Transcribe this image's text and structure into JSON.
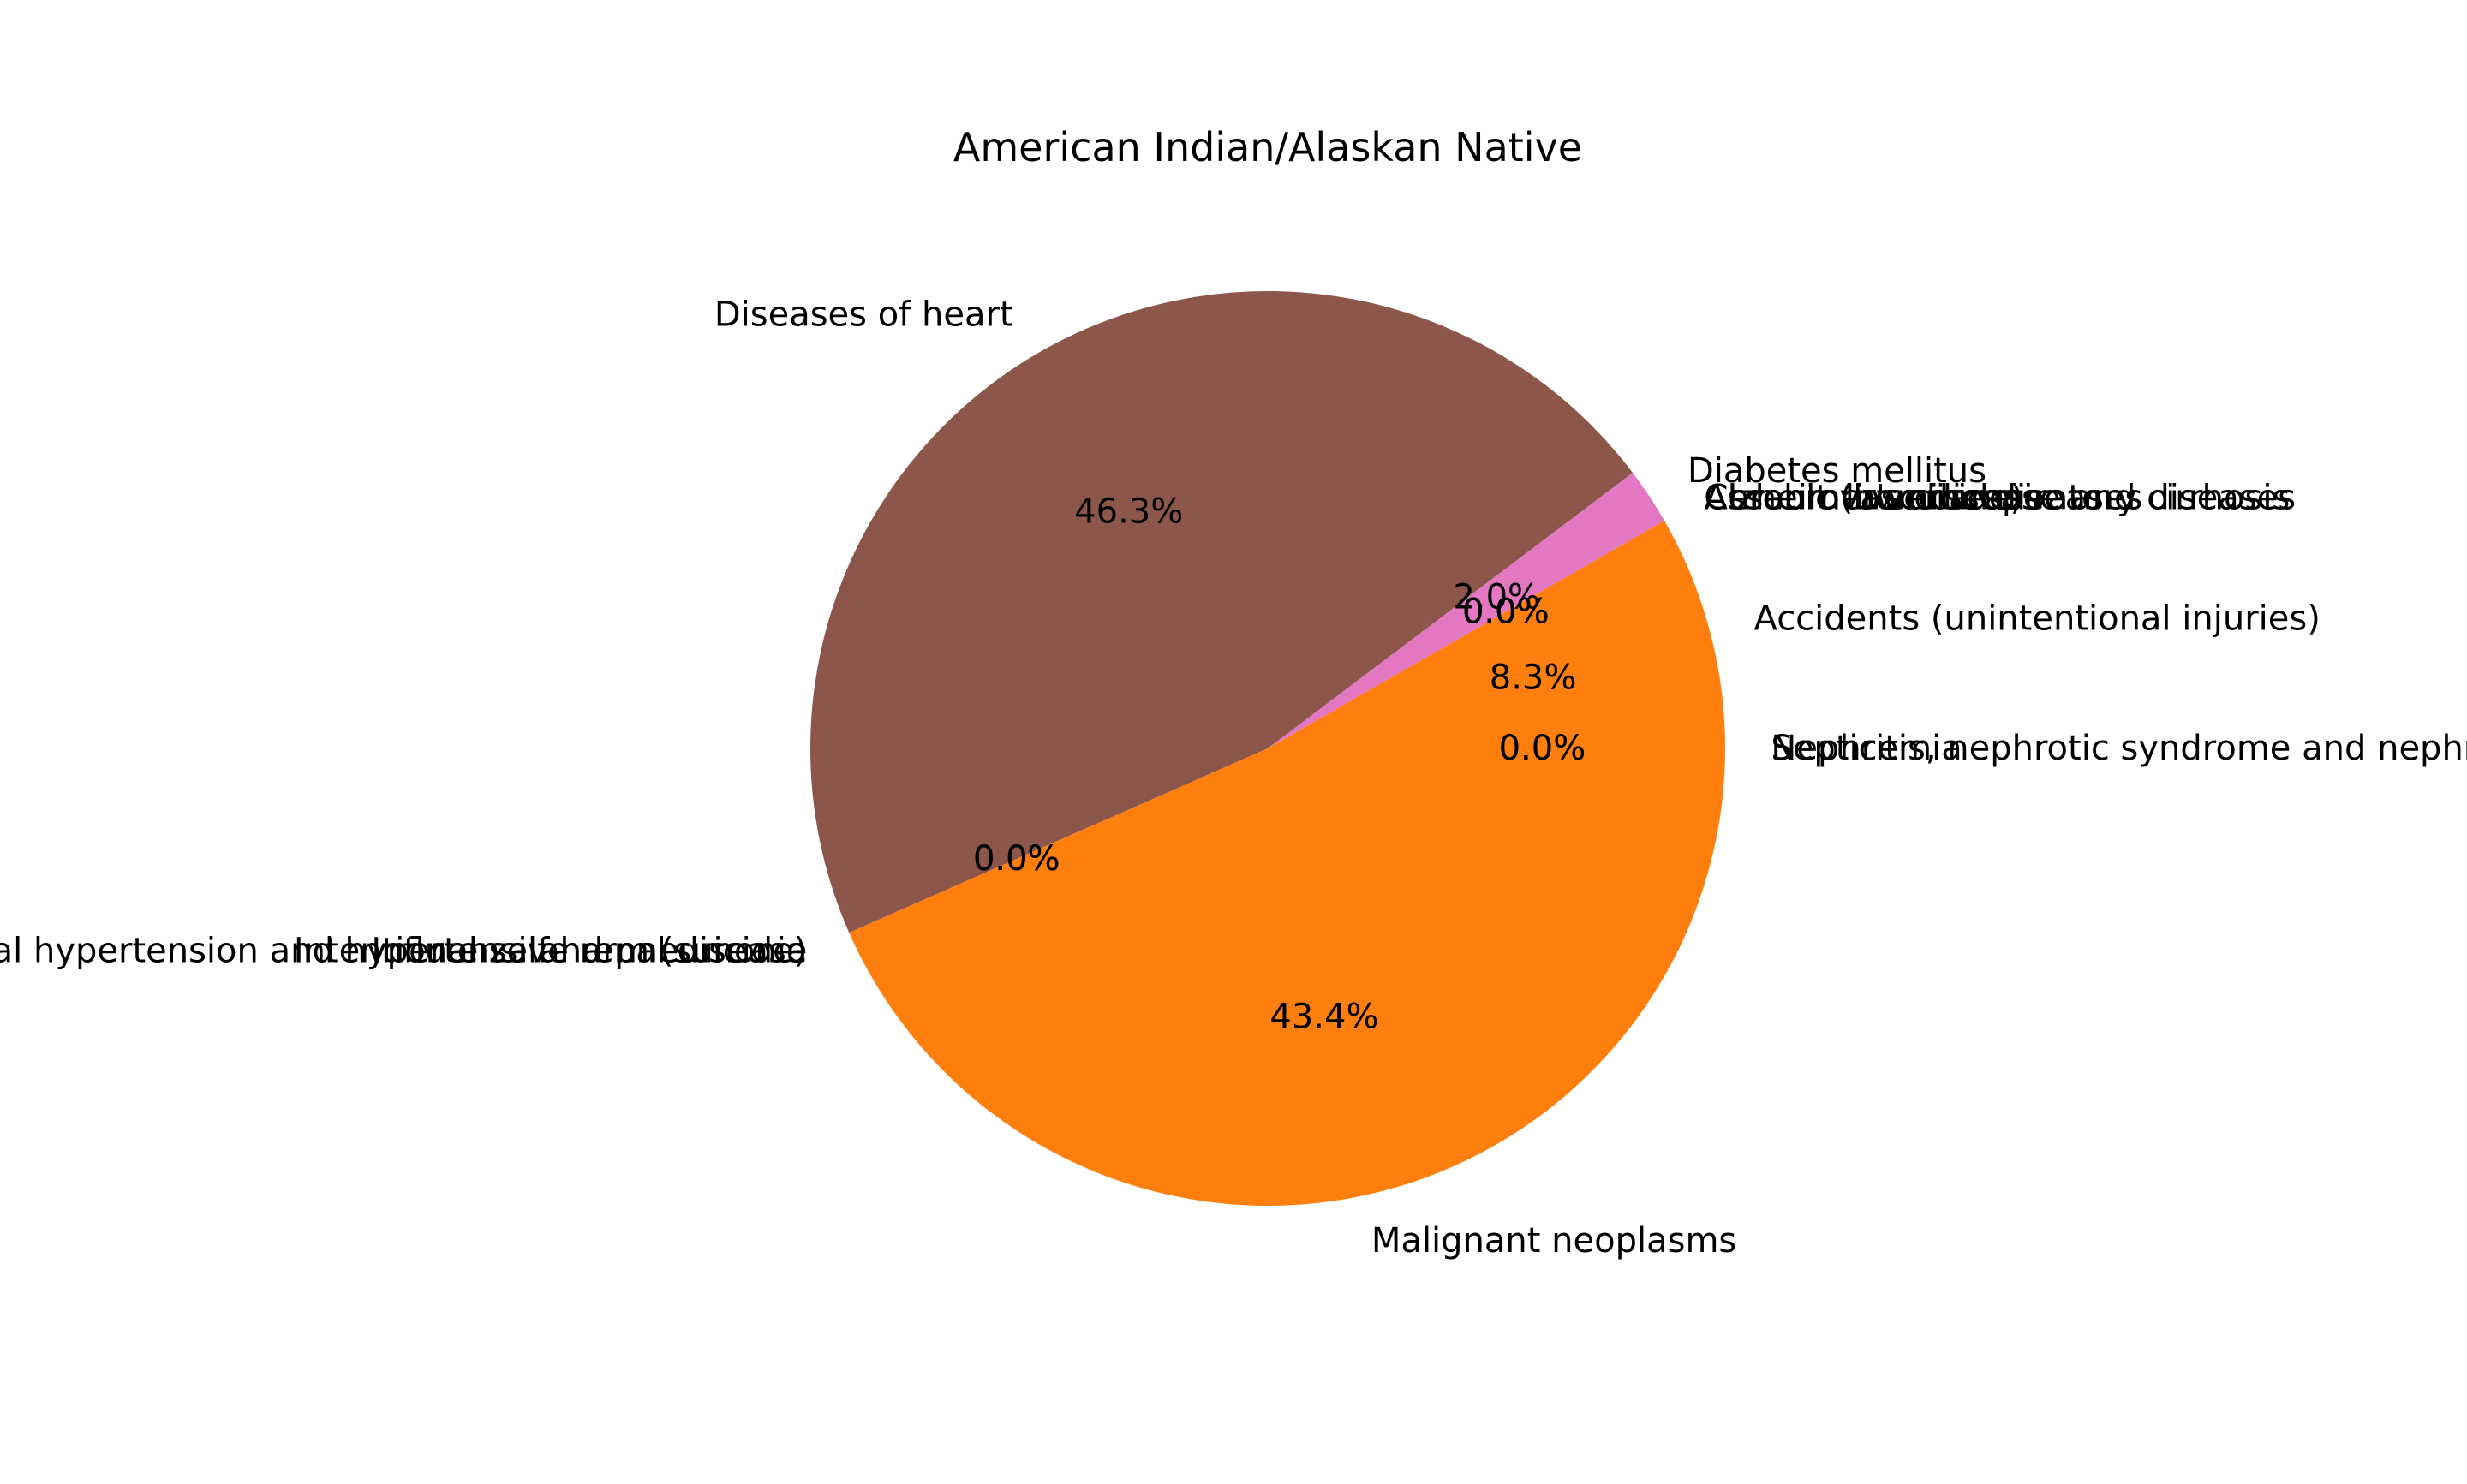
{
  "chart_data": {
    "type": "pie",
    "title": "American Indian/Alaskan Native",
    "labels": [
      "Accidents (unintentional injuries)",
      "Alzheimer's disease",
      "Assault (homicide)",
      "Cerebrovascular diseases",
      "Chronic liver disease and cirrhosis",
      "Chronic lower respiratory diseases",
      "Diabetes mellitus",
      "Diseases of heart",
      "Essential hypertension and hypertensive renal disease",
      "Influenza and pneumonia",
      "Intentional self-harm (suicide)",
      "Malignant neoplasms",
      "Nephritis, nephrotic syndrome and nephrosis",
      "Septicemia"
    ],
    "values": [
      8.3,
      0.0,
      0.0,
      0.0,
      0.0,
      0.0,
      2.0,
      46.3,
      0.0,
      0.0,
      0.0,
      43.4,
      0.0,
      0.0
    ],
    "pct_labels": [
      "8.3%",
      "0.0%",
      "0.0%",
      "0.0%",
      "0.0%",
      "0.0%",
      "2.0%",
      "46.3%",
      "0.0%",
      "0.0%",
      "0.0%",
      "43.4%",
      "0.0%",
      "0.0%"
    ],
    "colors": [
      "#1f77b4",
      "#ff7f0e",
      "#2ca02c",
      "#d62728",
      "#9467bd",
      "#8c564b",
      "#e377c2",
      "#8c564b",
      "#7f7f7f",
      "#bcbd22",
      "#17becf",
      "#ff7f0e",
      "#1f77b4",
      "#2ca02c"
    ],
    "slice_colors": [
      "#ff7f0e",
      "#ff7f0e",
      "#ff7f0e",
      "#ff7f0e",
      "#8c564b",
      "#8c564b",
      "#e377c2",
      "#8c564b",
      "#e377c2",
      "#e377c2",
      "#8c564b",
      "#ff7f0e",
      "#ff7f0e",
      "#ff7f0e"
    ],
    "start_angle_deg": 0,
    "direction": "counterclockwise",
    "legend": "none"
  }
}
